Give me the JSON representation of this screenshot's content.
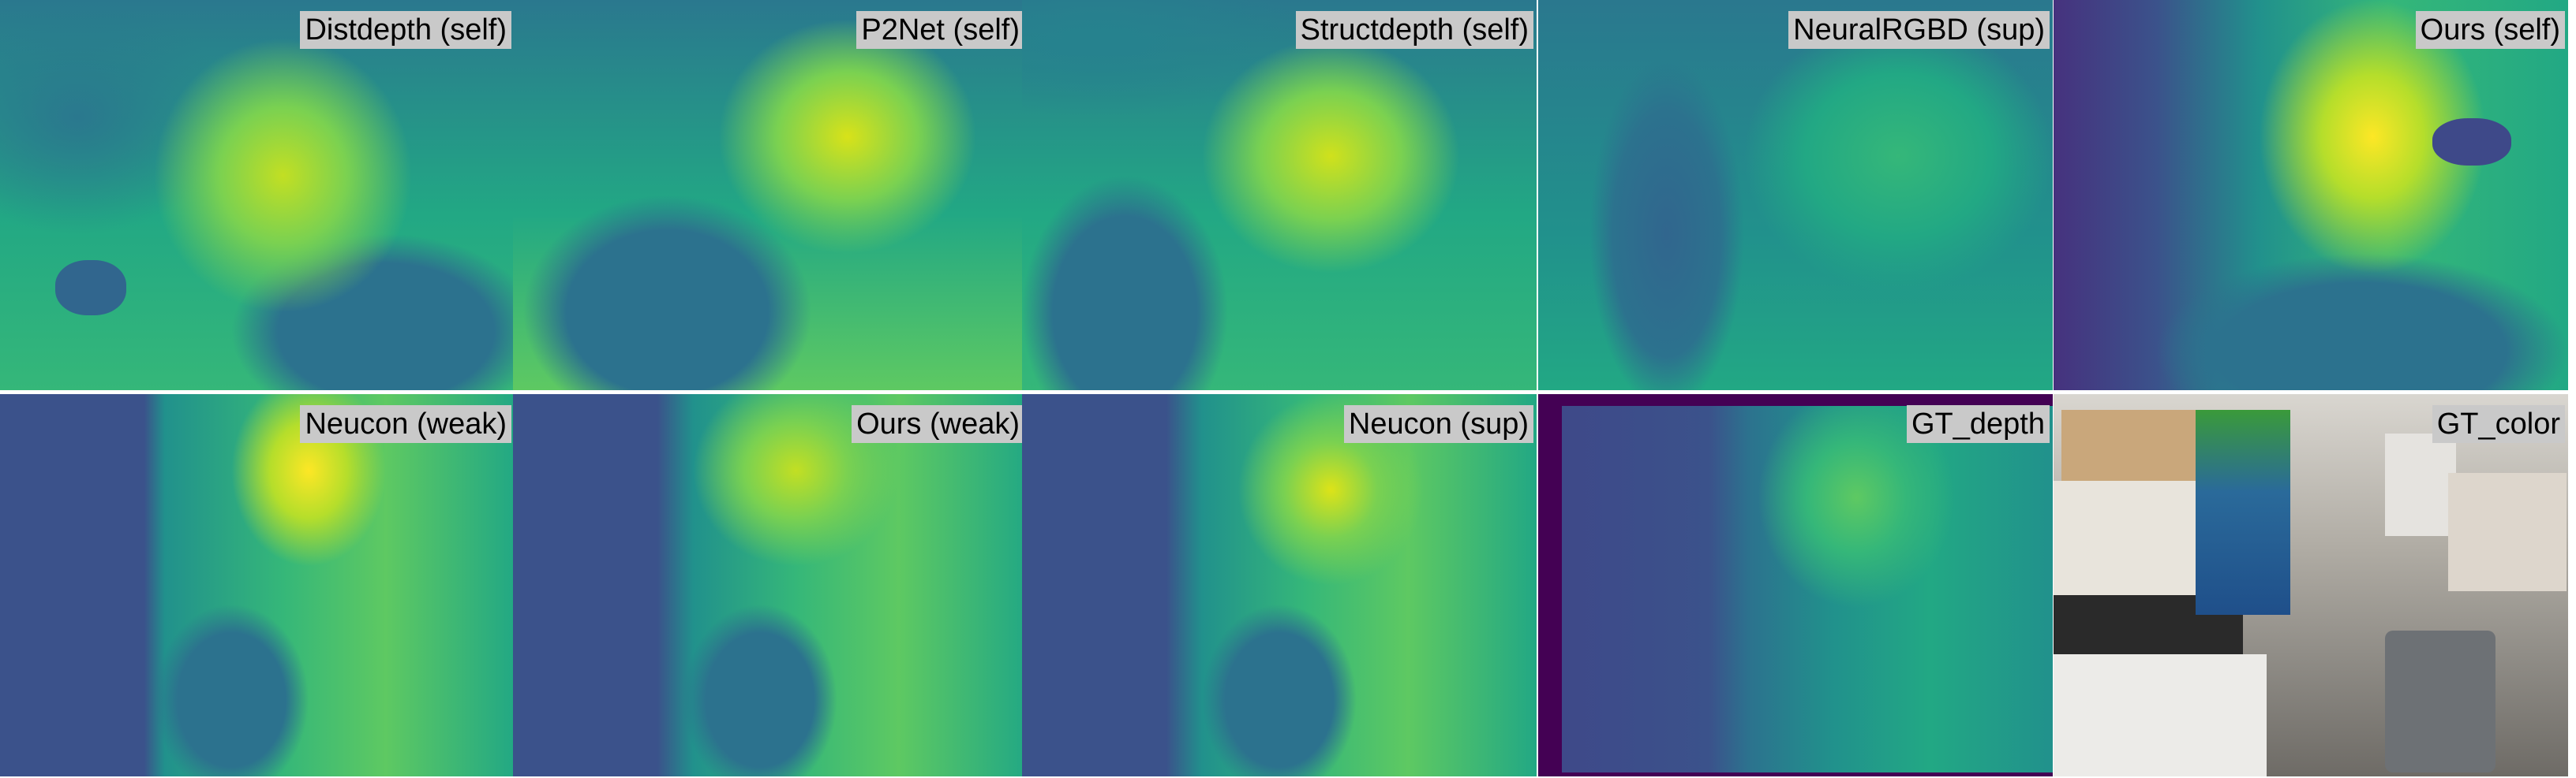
{
  "panels": [
    {
      "label": "Distdepth (self)"
    },
    {
      "label": "P2Net (self)"
    },
    {
      "label": "Structdepth (self)"
    },
    {
      "label": "NeuralRGBD (sup)"
    },
    {
      "label": "Ours (self)"
    },
    {
      "label": "Neucon (weak)"
    },
    {
      "label": "Ours (weak)"
    },
    {
      "label": "Neucon (sup)"
    },
    {
      "label": "GT_depth"
    },
    {
      "label": "GT_color"
    }
  ]
}
